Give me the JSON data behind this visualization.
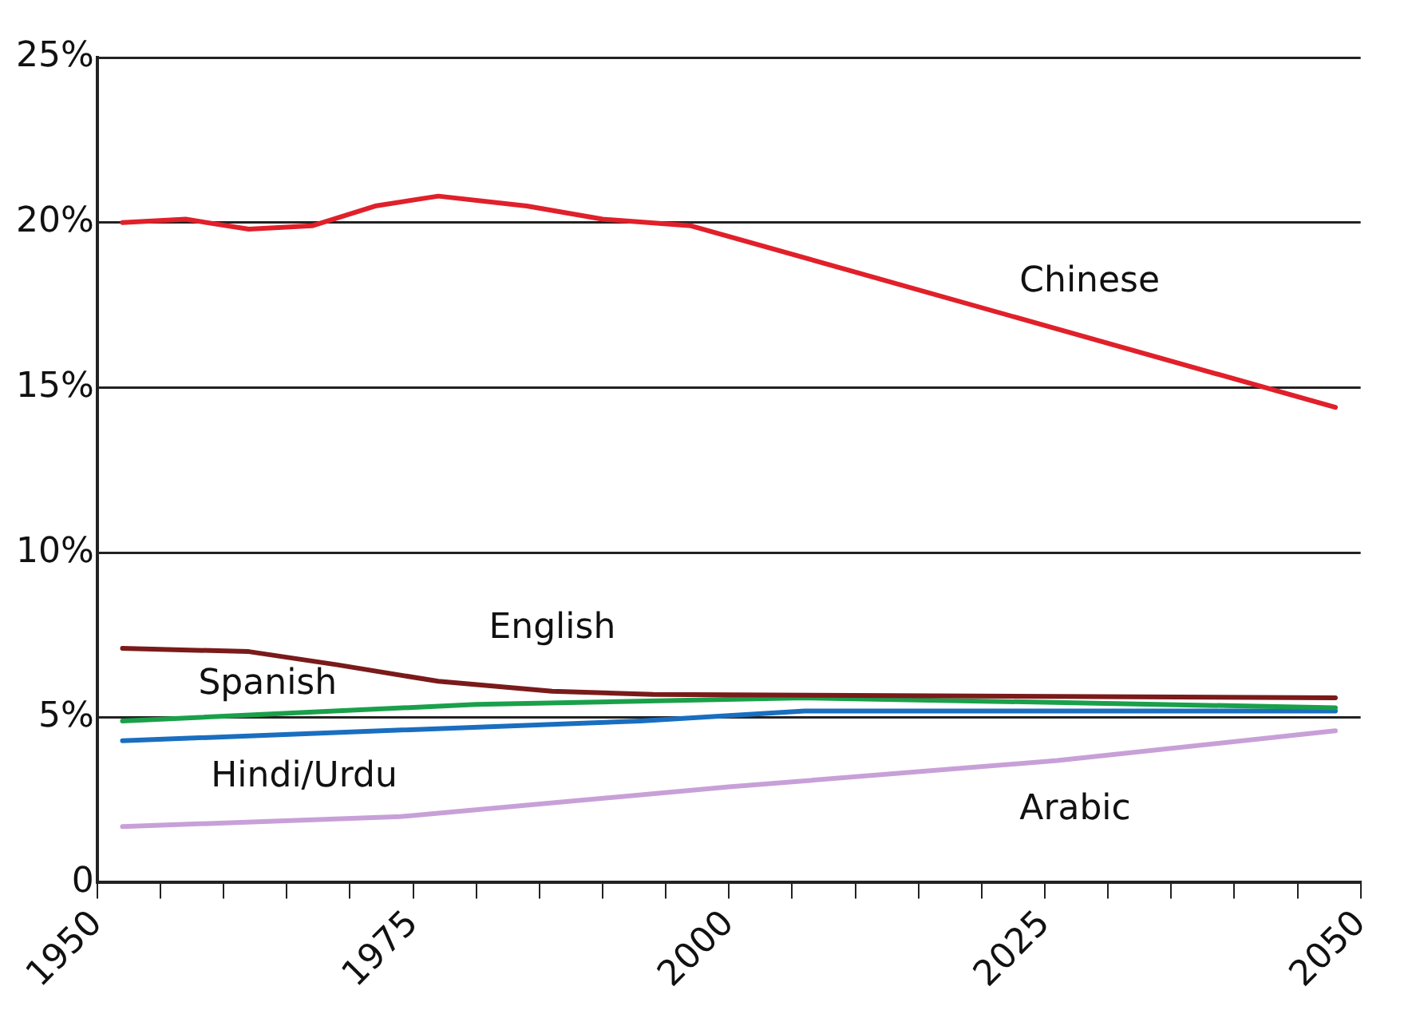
{
  "chart_data": {
    "type": "line",
    "xlim": [
      1950,
      2050
    ],
    "ylim": [
      0,
      25
    ],
    "xticks": [
      {
        "value": 1950,
        "label": "1950"
      },
      {
        "value": 1955,
        "label": null
      },
      {
        "value": 1960,
        "label": null
      },
      {
        "value": 1965,
        "label": null
      },
      {
        "value": 1970,
        "label": null
      },
      {
        "value": 1975,
        "label": "1975"
      },
      {
        "value": 1980,
        "label": null
      },
      {
        "value": 1985,
        "label": null
      },
      {
        "value": 1990,
        "label": null
      },
      {
        "value": 1995,
        "label": null
      },
      {
        "value": 2000,
        "label": "2000"
      },
      {
        "value": 2005,
        "label": null
      },
      {
        "value": 2010,
        "label": null
      },
      {
        "value": 2015,
        "label": null
      },
      {
        "value": 2020,
        "label": null
      },
      {
        "value": 2025,
        "label": "2025"
      },
      {
        "value": 2030,
        "label": null
      },
      {
        "value": 2035,
        "label": null
      },
      {
        "value": 2040,
        "label": null
      },
      {
        "value": 2045,
        "label": null
      },
      {
        "value": 2050,
        "label": "2050"
      }
    ],
    "yticks": [
      {
        "value": 0,
        "label": "0"
      },
      {
        "value": 5,
        "label": "5%"
      },
      {
        "value": 10,
        "label": "10%"
      },
      {
        "value": 15,
        "label": "15%"
      },
      {
        "value": 20,
        "label": "20%"
      },
      {
        "value": 25,
        "label": "25%"
      }
    ],
    "grid": "y",
    "legend": false,
    "marker": "none",
    "line_style": "solid",
    "series": [
      {
        "name": "Chinese",
        "color": "#e0202a",
        "x": [
          1952,
          1957,
          1962,
          1967,
          1972,
          1977,
          1984,
          1990,
          1997,
          2048
        ],
        "values": [
          20.0,
          20.1,
          19.8,
          19.9,
          20.5,
          20.8,
          20.5,
          20.1,
          19.9,
          14.4
        ]
      },
      {
        "name": "English",
        "color": "#7a1a1a",
        "x": [
          1952,
          1962,
          1969,
          1977,
          1986,
          1994,
          2048
        ],
        "values": [
          7.1,
          7.0,
          6.6,
          6.1,
          5.8,
          5.7,
          5.6
        ]
      },
      {
        "name": "Spanish",
        "color": "#1aa04a",
        "x": [
          1952,
          1980,
          2006,
          2048
        ],
        "values": [
          4.9,
          5.4,
          5.6,
          5.3
        ]
      },
      {
        "name": "Hindi/Urdu",
        "color": "#1a6ec0",
        "x": [
          1952,
          1993,
          2006,
          2048
        ],
        "values": [
          4.3,
          4.9,
          5.2,
          5.2
        ]
      },
      {
        "name": "Arabic",
        "color": "#c8a0d8",
        "x": [
          1952,
          1974,
          2000,
          2026,
          2048
        ],
        "values": [
          1.7,
          2.0,
          2.9,
          3.7,
          4.6
        ]
      }
    ]
  }
}
